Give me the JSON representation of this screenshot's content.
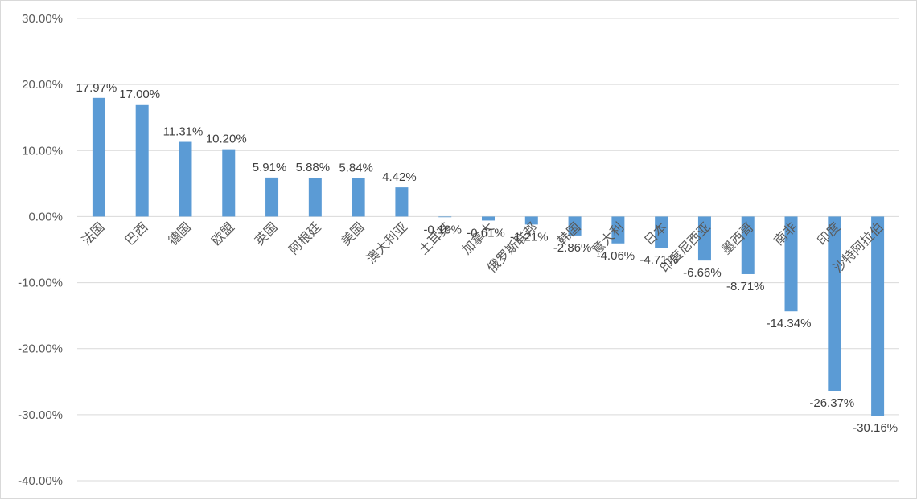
{
  "chart_data": {
    "type": "bar",
    "title": "",
    "xlabel": "",
    "ylabel": "",
    "ylim": [
      -40,
      30
    ],
    "yticks": [
      30,
      20,
      10,
      0,
      -10,
      -20,
      -30,
      -40
    ],
    "ytick_labels": [
      "30.00%",
      "20.00%",
      "10.00%",
      "0.00%",
      "-10.00%",
      "-20.00%",
      "-30.00%",
      "-40.00%"
    ],
    "grid": true,
    "legend": "none",
    "bar_color": "#5b9bd5",
    "categories": [
      "法国",
      "巴西",
      "德国",
      "欧盟",
      "英国",
      "阿根廷",
      "美国",
      "澳大利亚",
      "土耳其",
      "加拿大",
      "俄罗斯联邦",
      "韩国",
      "意大利",
      "日本",
      "印度尼西亚",
      "墨西哥",
      "南非",
      "印度",
      "沙特阿拉伯"
    ],
    "values": [
      17.97,
      17.0,
      11.31,
      10.2,
      5.91,
      5.88,
      5.84,
      4.42,
      -0.1,
      -0.61,
      -1.21,
      -2.86,
      -4.06,
      -4.71,
      -6.66,
      -8.71,
      -14.34,
      -26.37,
      -30.16
    ],
    "data_labels": [
      "17.97%",
      "17.00%",
      "11.31%",
      "10.20%",
      "5.91%",
      "5.88%",
      "5.84%",
      "4.42%",
      "-0.10%",
      "-0.61%",
      "-1.21%",
      "-2.86%",
      "-4.06%",
      "-4.71%",
      "-6.66%",
      "-8.71%",
      "-14.34%",
      "-26.37%",
      "-30.16%"
    ]
  }
}
